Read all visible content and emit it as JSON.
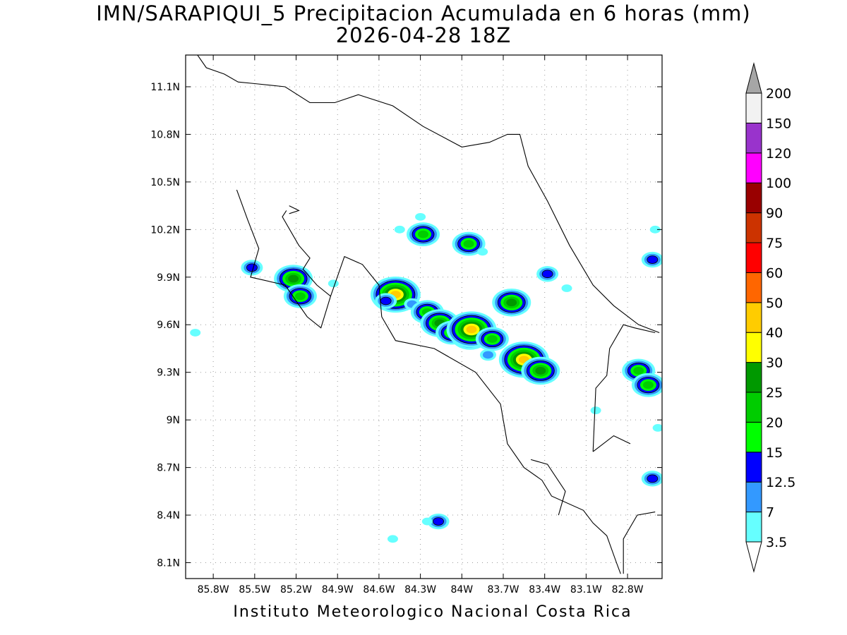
{
  "title": "IMN/SARAPIQUI_5 Precipitacion Acumulada en 6 horas (mm)",
  "subtitle": "2026-04-28 18Z",
  "footer": "Instituto Meteorologico Nacional Costa Rica",
  "map": {
    "lon_range": [
      -86.0,
      -82.55
    ],
    "lat_range": [
      8.0,
      11.3
    ],
    "grid": true,
    "lon_ticks": [
      {
        "value": -85.8,
        "label": "85.8W"
      },
      {
        "value": -85.5,
        "label": "85.5W"
      },
      {
        "value": -85.2,
        "label": "85.2W"
      },
      {
        "value": -84.9,
        "label": "84.9W"
      },
      {
        "value": -84.6,
        "label": "84.6W"
      },
      {
        "value": -84.3,
        "label": "84.3W"
      },
      {
        "value": -84.0,
        "label": "84W"
      },
      {
        "value": -83.7,
        "label": "83.7W"
      },
      {
        "value": -83.4,
        "label": "83.4W"
      },
      {
        "value": -83.1,
        "label": "83.1W"
      },
      {
        "value": -82.8,
        "label": "82.8W"
      }
    ],
    "lat_ticks": [
      {
        "value": 11.1,
        "label": "11.1N"
      },
      {
        "value": 10.8,
        "label": "10.8N"
      },
      {
        "value": 10.5,
        "label": "10.5N"
      },
      {
        "value": 10.2,
        "label": "10.2N"
      },
      {
        "value": 9.9,
        "label": "9.9N"
      },
      {
        "value": 9.6,
        "label": "9.6N"
      },
      {
        "value": 9.3,
        "label": "9.3N"
      },
      {
        "value": 9.0,
        "label": "9N"
      },
      {
        "value": 8.7,
        "label": "8.7N"
      },
      {
        "value": 8.4,
        "label": "8.4N"
      },
      {
        "value": 8.1,
        "label": "8.1N"
      }
    ],
    "coastlines": [
      [
        [
          -85.93,
          11.32
        ],
        [
          -85.85,
          11.22
        ],
        [
          -85.72,
          11.18
        ],
        [
          -85.62,
          11.13
        ],
        [
          -85.5,
          11.12
        ],
        [
          -85.28,
          11.1
        ],
        [
          -85.1,
          11.0
        ],
        [
          -84.92,
          11.0
        ],
        [
          -84.75,
          11.05
        ],
        [
          -84.5,
          10.98
        ],
        [
          -84.28,
          10.85
        ],
        [
          -84.0,
          10.72
        ],
        [
          -83.8,
          10.75
        ],
        [
          -83.67,
          10.8
        ],
        [
          -83.58,
          10.8
        ],
        [
          -83.52,
          10.6
        ],
        [
          -83.38,
          10.38
        ],
        [
          -83.22,
          10.1
        ],
        [
          -83.05,
          9.85
        ],
        [
          -82.9,
          9.72
        ],
        [
          -82.72,
          9.6
        ],
        [
          -82.57,
          9.55
        ]
      ],
      [
        [
          -85.63,
          10.45
        ],
        [
          -85.55,
          10.26
        ],
        [
          -85.47,
          10.08
        ],
        [
          -85.53,
          9.9
        ],
        [
          -85.28,
          9.85
        ],
        [
          -85.12,
          9.65
        ],
        [
          -85.02,
          9.58
        ],
        [
          -84.95,
          9.78
        ],
        [
          -85.05,
          9.85
        ],
        [
          -85.15,
          9.95
        ],
        [
          -85.1,
          10.02
        ],
        [
          -85.18,
          10.1
        ],
        [
          -85.3,
          10.28
        ],
        [
          -85.27,
          10.32
        ]
      ],
      [
        [
          -84.95,
          9.78
        ],
        [
          -84.85,
          10.03
        ],
        [
          -84.72,
          9.98
        ],
        [
          -84.6,
          9.85
        ],
        [
          -84.58,
          9.65
        ],
        [
          -84.48,
          9.5
        ],
        [
          -84.2,
          9.45
        ],
        [
          -83.9,
          9.3
        ],
        [
          -83.72,
          9.1
        ],
        [
          -83.67,
          8.85
        ],
        [
          -83.55,
          8.7
        ],
        [
          -83.42,
          8.62
        ],
        [
          -83.35,
          8.52
        ],
        [
          -83.12,
          8.43
        ],
        [
          -83.05,
          8.35
        ],
        [
          -82.95,
          8.27
        ],
        [
          -82.88,
          8.1
        ],
        [
          -82.85,
          8.03
        ]
      ],
      [
        [
          -83.5,
          8.75
        ],
        [
          -83.38,
          8.72
        ],
        [
          -83.25,
          8.55
        ],
        [
          -83.3,
          8.4
        ]
      ],
      [
        [
          -82.83,
          8.03
        ],
        [
          -82.83,
          8.25
        ],
        [
          -82.73,
          8.4
        ],
        [
          -82.6,
          8.42
        ]
      ],
      [
        [
          -83.05,
          8.8
        ],
        [
          -83.03,
          9.2
        ],
        [
          -82.95,
          9.28
        ],
        [
          -82.93,
          9.45
        ],
        [
          -82.83,
          9.6
        ],
        [
          -82.75,
          9.58
        ],
        [
          -82.6,
          9.55
        ]
      ],
      [
        [
          -83.05,
          8.8
        ],
        [
          -82.9,
          8.9
        ],
        [
          -82.78,
          8.85
        ]
      ],
      [
        [
          -85.25,
          10.35
        ],
        [
          -85.18,
          10.32
        ],
        [
          -85.25,
          10.3
        ]
      ]
    ],
    "precip_cells": [
      {
        "lon": -85.52,
        "lat": 9.96,
        "mm": 12.5
      },
      {
        "lon": -85.22,
        "lat": 9.89,
        "mm": 25
      },
      {
        "lon": -85.17,
        "lat": 9.78,
        "mm": 20
      },
      {
        "lon": -84.93,
        "lat": 9.86,
        "mm": 3.5
      },
      {
        "lon": -84.48,
        "lat": 9.79,
        "mm": 40
      },
      {
        "lon": -84.55,
        "lat": 9.75,
        "mm": 12.5
      },
      {
        "lon": -84.36,
        "lat": 9.73,
        "mm": 7
      },
      {
        "lon": -84.25,
        "lat": 9.68,
        "mm": 20
      },
      {
        "lon": -84.16,
        "lat": 9.61,
        "mm": 25
      },
      {
        "lon": -84.07,
        "lat": 9.55,
        "mm": 20
      },
      {
        "lon": -83.94,
        "lat": 9.53,
        "mm": 25
      },
      {
        "lon": -83.93,
        "lat": 9.57,
        "mm": 40
      },
      {
        "lon": -83.78,
        "lat": 9.51,
        "mm": 20
      },
      {
        "lon": -83.81,
        "lat": 9.41,
        "mm": 7
      },
      {
        "lon": -83.64,
        "lat": 9.74,
        "mm": 25
      },
      {
        "lon": -83.55,
        "lat": 9.38,
        "mm": 40
      },
      {
        "lon": -83.43,
        "lat": 9.31,
        "mm": 25
      },
      {
        "lon": -83.38,
        "lat": 9.92,
        "mm": 12.5
      },
      {
        "lon": -83.24,
        "lat": 9.83,
        "mm": 3.5
      },
      {
        "lon": -84.28,
        "lat": 10.17,
        "mm": 20
      },
      {
        "lon": -84.3,
        "lat": 10.28,
        "mm": 3.5
      },
      {
        "lon": -84.45,
        "lat": 10.2,
        "mm": 3.5
      },
      {
        "lon": -83.95,
        "lat": 10.11,
        "mm": 20
      },
      {
        "lon": -83.85,
        "lat": 10.06,
        "mm": 3.5
      },
      {
        "lon": -82.72,
        "lat": 9.31,
        "mm": 20
      },
      {
        "lon": -82.65,
        "lat": 9.22,
        "mm": 20
      },
      {
        "lon": -82.62,
        "lat": 10.01,
        "mm": 12.5
      },
      {
        "lon": -82.6,
        "lat": 10.2,
        "mm": 3.5
      },
      {
        "lon": -82.62,
        "lat": 8.63,
        "mm": 12.5
      },
      {
        "lon": -84.17,
        "lat": 8.36,
        "mm": 12.5
      },
      {
        "lon": -84.25,
        "lat": 8.36,
        "mm": 3.5
      },
      {
        "lon": -84.5,
        "lat": 8.25,
        "mm": 3.5
      },
      {
        "lon": -85.93,
        "lat": 9.55,
        "mm": 3.5
      },
      {
        "lon": -82.58,
        "lat": 8.95,
        "mm": 3.5
      },
      {
        "lon": -83.03,
        "lat": 9.06,
        "mm": 3.5
      }
    ]
  },
  "colorbar": {
    "levels": [
      "3.5",
      "7",
      "12.5",
      "15",
      "20",
      "25",
      "30",
      "40",
      "50",
      "60",
      "75",
      "90",
      "100",
      "120",
      "150",
      "200"
    ],
    "colors": [
      "#66ffff",
      "#3399ff",
      "#0000ff",
      "#00ff00",
      "#00cc00",
      "#009900",
      "#ffff00",
      "#ffcc00",
      "#ff6600",
      "#ff0000",
      "#cc3300",
      "#990000",
      "#ff00ff",
      "#9933cc",
      "#f2f2f2",
      "#a6a6a6"
    ]
  }
}
